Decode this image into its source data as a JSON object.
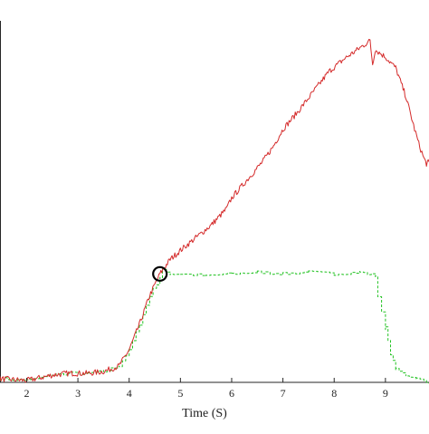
{
  "chart_data": {
    "type": "line",
    "title": "",
    "xlabel": "Time (S)",
    "ylabel": "",
    "xlim": [
      1.48,
      9.85
    ],
    "ylim": [
      0,
      100
    ],
    "xticks": [
      2,
      3,
      4,
      5,
      6,
      7,
      8,
      9
    ],
    "tick_labels": [
      "2",
      "3",
      "4",
      "5",
      "6",
      "7",
      "8",
      "9"
    ],
    "grid": false,
    "colors": {
      "red": "#d42a2a",
      "green": "#22c222",
      "axis": "#262626"
    },
    "series": [
      {
        "color": "red",
        "style": "solid",
        "x": [
          1.48,
          2.0,
          2.5,
          2.8,
          3.2,
          3.5,
          3.8,
          4.0,
          4.2,
          4.4,
          4.6,
          4.8,
          5.0,
          5.3,
          5.6,
          5.9,
          6.0,
          6.3,
          6.6,
          6.8,
          7.0,
          7.3,
          7.6,
          7.9,
          8.2,
          8.5,
          8.7,
          8.75,
          8.8,
          9.0,
          9.2,
          9.4,
          9.55,
          9.65,
          9.75,
          9.8,
          9.85
        ],
        "y": [
          1.0,
          0.5,
          2.0,
          2.5,
          2.5,
          3.0,
          4.5,
          9.0,
          16.0,
          24.0,
          30.0,
          34.0,
          36.5,
          40.0,
          43.5,
          48.0,
          51.0,
          56.0,
          61.0,
          65.0,
          70.0,
          75.0,
          80.5,
          86.0,
          89.5,
          92.5,
          94.5,
          88.0,
          92.0,
          90.0,
          87.0,
          79.0,
          71.0,
          66.0,
          62.0,
          60.5,
          61.0
        ]
      },
      {
        "color": "green",
        "style": "dashed",
        "x": [
          1.48,
          2.0,
          2.5,
          2.8,
          3.2,
          3.5,
          3.8,
          4.0,
          4.2,
          4.4,
          4.6,
          4.65,
          4.8,
          5.0,
          5.5,
          6.0,
          6.5,
          7.0,
          7.5,
          8.0,
          8.5,
          8.8,
          8.85,
          9.0,
          9.1,
          9.2,
          9.4,
          9.6,
          9.75,
          9.85
        ],
        "y": [
          1.0,
          0.5,
          2.0,
          2.5,
          2.5,
          3.0,
          4.5,
          9.0,
          16.0,
          24.0,
          29.0,
          31.0,
          30.0,
          30.0,
          29.5,
          30.0,
          30.5,
          30.0,
          30.5,
          30.0,
          30.5,
          29.5,
          24.0,
          15.0,
          8.0,
          3.5,
          2.0,
          1.0,
          0.5,
          0.0
        ]
      }
    ],
    "annotations": [
      {
        "type": "circle",
        "x": 4.6,
        "y": 30.0
      }
    ]
  }
}
